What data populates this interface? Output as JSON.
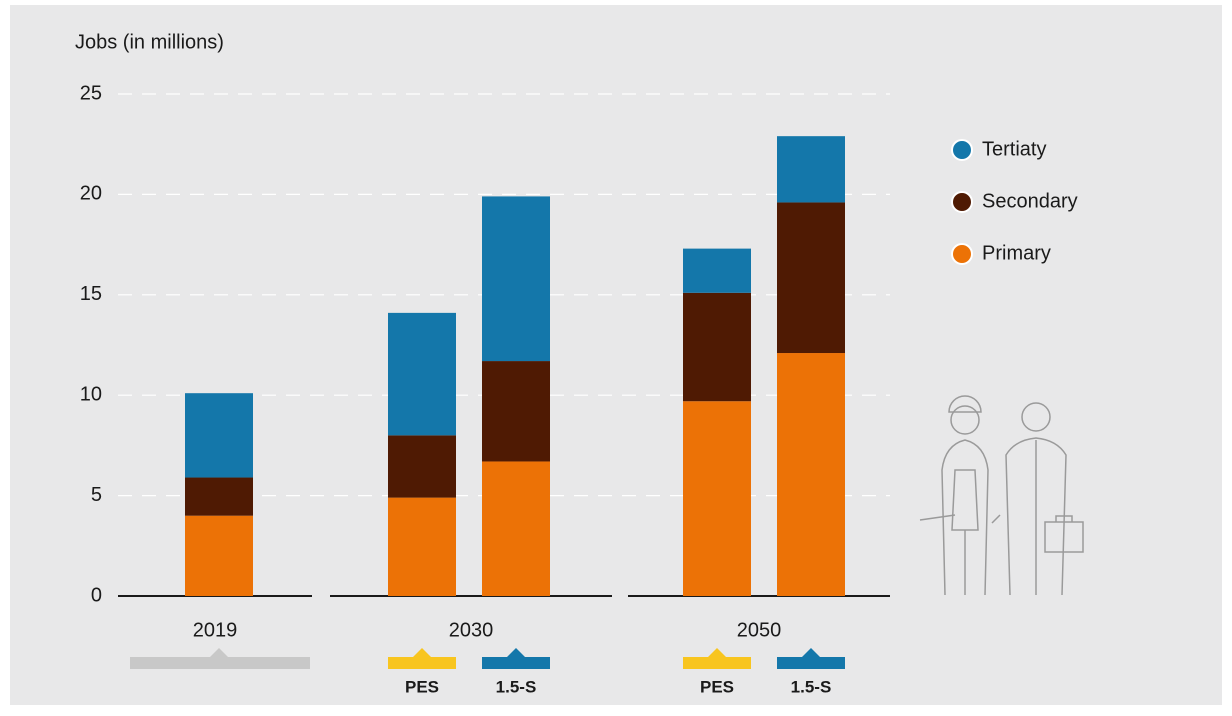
{
  "chart_data": {
    "type": "stacked_bar",
    "y_label": "Jobs (in millions)",
    "groups": [
      {
        "name": "2019",
        "categories": [
          null
        ]
      },
      {
        "name": "2030",
        "categories": [
          "PES",
          "1.5-S"
        ]
      },
      {
        "name": "2050",
        "categories": [
          "PES",
          "1.5-S"
        ]
      }
    ],
    "category_colors": [
      "#c8c8c8",
      "#f8c51f",
      "#1477aa",
      "#f8c51f",
      "#1477aa"
    ],
    "series": [
      {
        "name": "Primary",
        "color": "#ec7206",
        "values": [
          4.0,
          4.9,
          6.7,
          9.7,
          12.1
        ]
      },
      {
        "name": "Secondary",
        "color": "#4f1a03",
        "values": [
          1.9,
          3.1,
          5.0,
          5.4,
          7.5
        ]
      },
      {
        "name": "Tertiaty",
        "color": "#1477aa",
        "values": [
          4.2,
          6.1,
          8.2,
          2.2,
          3.3
        ]
      }
    ],
    "ylim": [
      0,
      25
    ],
    "yticks": [
      0,
      5,
      10,
      15,
      20,
      25
    ],
    "grid": true,
    "legend": "right"
  }
}
